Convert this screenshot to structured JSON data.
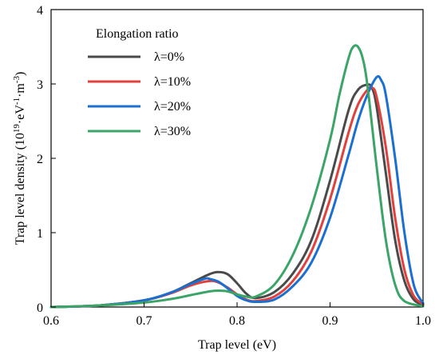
{
  "chart_data": {
    "type": "line",
    "xlabel": "Trap level (eV)",
    "ylabel_main": "Trap level density (10",
    "ylabel_exp1": "19",
    "ylabel_mid": "·eV",
    "ylabel_exp2": "-1",
    "ylabel_mid2": "·m",
    "ylabel_exp3": "-3",
    "ylabel_end": ")",
    "xlim": [
      0.6,
      1.0
    ],
    "ylim": [
      0,
      4
    ],
    "xticks": [
      "0.6",
      "0.7",
      "0.8",
      "0.9",
      "1.0"
    ],
    "yticks": [
      "0",
      "1",
      "2",
      "3",
      "4"
    ],
    "legend": {
      "title": "Elongation ratio",
      "position": "top-left"
    },
    "series": [
      {
        "name": "λ=0%",
        "color": "#4a4a4a",
        "x": [
          0.6,
          0.65,
          0.7,
          0.73,
          0.75,
          0.77,
          0.78,
          0.79,
          0.8,
          0.81,
          0.82,
          0.84,
          0.86,
          0.88,
          0.9,
          0.92,
          0.93,
          0.94,
          0.945,
          0.95,
          0.96,
          0.97,
          0.98,
          0.99,
          1.0
        ],
        "y": [
          0.0,
          0.02,
          0.09,
          0.2,
          0.32,
          0.44,
          0.47,
          0.44,
          0.32,
          0.18,
          0.12,
          0.2,
          0.45,
          0.9,
          1.7,
          2.65,
          2.92,
          2.99,
          2.95,
          2.7,
          1.8,
          0.9,
          0.35,
          0.1,
          0.03
        ]
      },
      {
        "name": "λ=10%",
        "color": "#e0413c",
        "x": [
          0.6,
          0.65,
          0.7,
          0.73,
          0.75,
          0.77,
          0.78,
          0.79,
          0.8,
          0.81,
          0.82,
          0.84,
          0.86,
          0.88,
          0.9,
          0.92,
          0.93,
          0.94,
          0.945,
          0.95,
          0.96,
          0.97,
          0.98,
          0.99,
          1.0
        ],
        "y": [
          0.0,
          0.02,
          0.09,
          0.19,
          0.29,
          0.35,
          0.33,
          0.26,
          0.17,
          0.1,
          0.08,
          0.14,
          0.35,
          0.75,
          1.45,
          2.35,
          2.72,
          2.92,
          2.95,
          2.83,
          2.15,
          1.2,
          0.5,
          0.15,
          0.04
        ]
      },
      {
        "name": "λ=20%",
        "color": "#1a6fd1",
        "x": [
          0.6,
          0.65,
          0.7,
          0.73,
          0.75,
          0.765,
          0.77,
          0.78,
          0.79,
          0.8,
          0.81,
          0.82,
          0.84,
          0.86,
          0.88,
          0.9,
          0.92,
          0.93,
          0.94,
          0.95,
          0.955,
          0.96,
          0.97,
          0.98,
          0.99,
          1.0
        ],
        "y": [
          0.0,
          0.02,
          0.09,
          0.2,
          0.31,
          0.38,
          0.38,
          0.34,
          0.25,
          0.15,
          0.09,
          0.07,
          0.1,
          0.28,
          0.6,
          1.2,
          2.05,
          2.5,
          2.85,
          3.09,
          3.05,
          2.85,
          2.0,
          1.0,
          0.3,
          0.05
        ]
      },
      {
        "name": "λ=30%",
        "color": "#3aa566",
        "x": [
          0.6,
          0.65,
          0.7,
          0.73,
          0.75,
          0.77,
          0.78,
          0.79,
          0.8,
          0.81,
          0.82,
          0.84,
          0.86,
          0.88,
          0.9,
          0.91,
          0.92,
          0.925,
          0.93,
          0.935,
          0.94,
          0.95,
          0.96,
          0.97,
          0.98,
          1.0
        ],
        "y": [
          0.0,
          0.02,
          0.06,
          0.11,
          0.16,
          0.21,
          0.22,
          0.21,
          0.17,
          0.14,
          0.14,
          0.3,
          0.7,
          1.35,
          2.25,
          2.85,
          3.35,
          3.5,
          3.5,
          3.35,
          3.0,
          1.9,
          0.9,
          0.3,
          0.08,
          0.01
        ]
      }
    ]
  }
}
